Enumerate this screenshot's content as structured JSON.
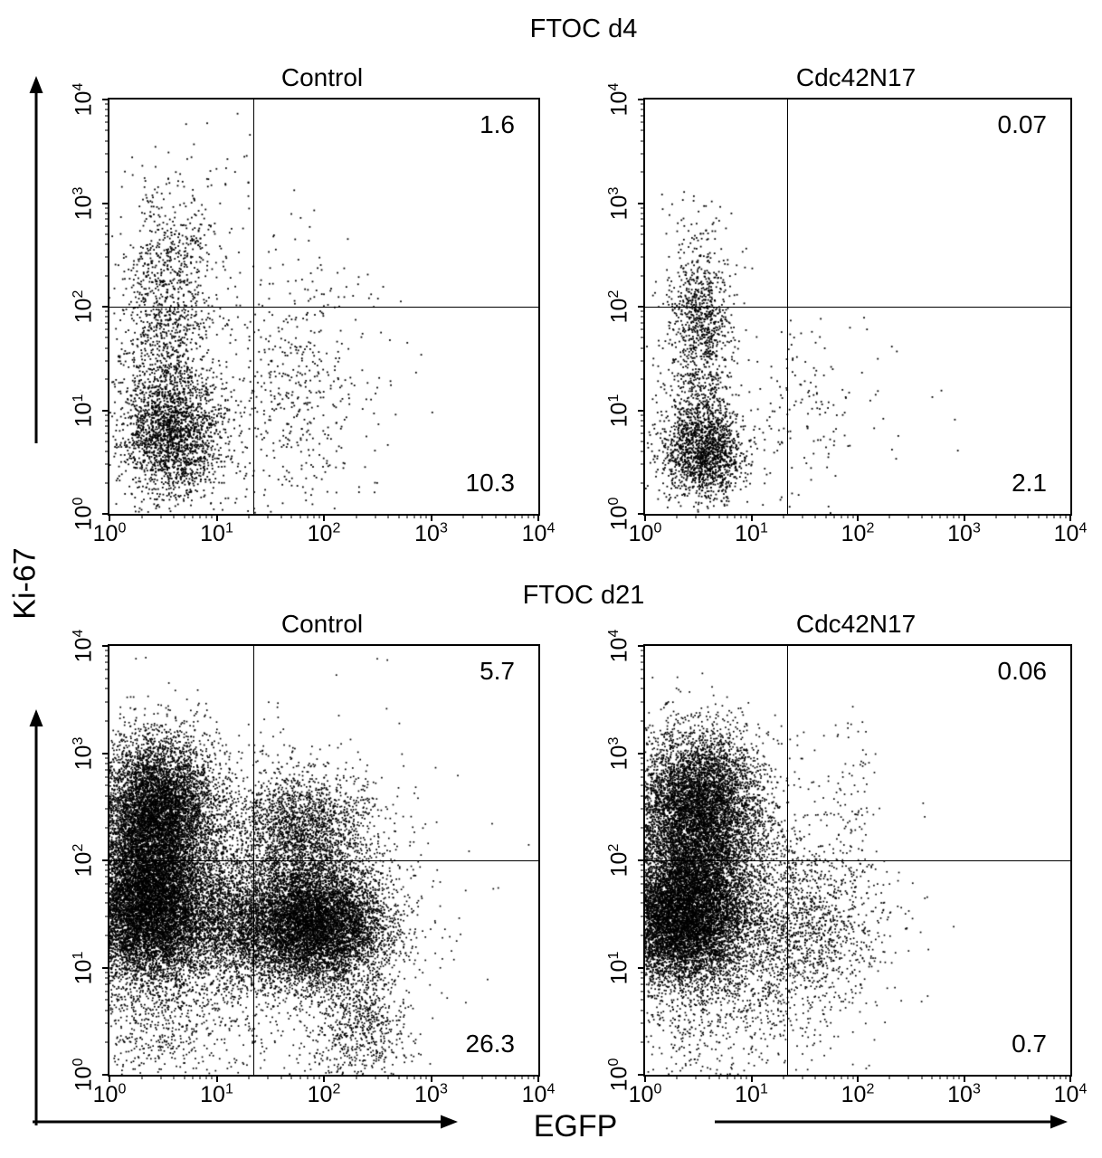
{
  "figure": {
    "ylabel": "Ki-67",
    "xlabel": "EGFP",
    "group_titles": [
      "FTOC d4",
      "FTOC d21"
    ]
  },
  "chart_data": [
    {
      "type": "scatter",
      "group": "FTOC d4",
      "title": "Control",
      "xlabel": "EGFP",
      "ylabel": "Ki-67",
      "x_scale": "log10",
      "y_scale": "log10",
      "xlim": [
        1,
        10000
      ],
      "ylim": [
        1,
        10000
      ],
      "tick_exponents": [
        0,
        1,
        2,
        3,
        4
      ],
      "grid": false,
      "gate": {
        "x": 22,
        "y": 100
      },
      "quadrant_values": {
        "upper_right": "1.6",
        "lower_right": "10.3"
      },
      "seed": 11,
      "point_size": 1.8,
      "populations_format": [
        "cx_log",
        "cy_log",
        "sx_log",
        "sy_log",
        "n"
      ],
      "populations": [
        [
          0.58,
          0.75,
          0.23,
          0.3,
          1900
        ],
        [
          0.52,
          1.55,
          0.22,
          0.45,
          850
        ],
        [
          0.58,
          2.4,
          0.22,
          0.33,
          420
        ],
        [
          0.6,
          3.05,
          0.28,
          0.28,
          60
        ],
        [
          1.75,
          0.95,
          0.38,
          0.5,
          320
        ],
        [
          1.85,
          1.9,
          0.4,
          0.42,
          130
        ],
        [
          1.25,
          1.25,
          0.6,
          0.55,
          160
        ],
        [
          1.15,
          3.5,
          0.15,
          0.35,
          12
        ]
      ]
    },
    {
      "type": "scatter",
      "group": "FTOC d4",
      "title": "Cdc42N17",
      "xlabel": "EGFP",
      "ylabel": "Ki-67",
      "x_scale": "log10",
      "y_scale": "log10",
      "xlim": [
        1,
        10000
      ],
      "ylim": [
        1,
        10000
      ],
      "tick_exponents": [
        0,
        1,
        2,
        3,
        4
      ],
      "grid": false,
      "gate": {
        "x": 22,
        "y": 100
      },
      "quadrant_values": {
        "upper_right": "0.07",
        "lower_right": "2.1"
      },
      "seed": 22,
      "point_size": 1.8,
      "populations_format": [
        "cx_log",
        "cy_log",
        "sx_log",
        "sy_log",
        "n"
      ],
      "populations": [
        [
          0.55,
          0.6,
          0.2,
          0.22,
          1600
        ],
        [
          0.52,
          1.4,
          0.16,
          0.45,
          700
        ],
        [
          0.52,
          2.0,
          0.14,
          0.22,
          380
        ],
        [
          0.55,
          2.65,
          0.2,
          0.25,
          90
        ],
        [
          1.5,
          1.0,
          0.28,
          0.45,
          130
        ],
        [
          2.2,
          0.9,
          0.45,
          0.4,
          18
        ]
      ]
    },
    {
      "type": "scatter",
      "group": "FTOC d21",
      "title": "Control",
      "xlabel": "EGFP",
      "ylabel": "Ki-67",
      "x_scale": "log10",
      "y_scale": "log10",
      "xlim": [
        1,
        10000
      ],
      "ylim": [
        1,
        10000
      ],
      "tick_exponents": [
        0,
        1,
        2,
        3,
        4
      ],
      "grid": false,
      "gate": {
        "x": 22,
        "y": 100
      },
      "quadrant_values": {
        "upper_right": "5.7",
        "lower_right": "26.3"
      },
      "seed": 33,
      "point_size": 1.7,
      "populations_format": [
        "cx_log",
        "cy_log",
        "sx_log",
        "sy_log",
        "n"
      ],
      "populations": [
        [
          0.35,
          1.5,
          0.3,
          0.32,
          7500
        ],
        [
          0.45,
          2.5,
          0.28,
          0.33,
          6000
        ],
        [
          0.4,
          2.0,
          0.3,
          0.25,
          2200
        ],
        [
          1.3,
          1.4,
          0.45,
          0.3,
          3000
        ],
        [
          1.95,
          1.4,
          0.33,
          0.28,
          6500
        ],
        [
          1.8,
          2.25,
          0.32,
          0.28,
          2200
        ],
        [
          2.35,
          0.45,
          0.22,
          0.3,
          700
        ],
        [
          0.45,
          0.45,
          0.35,
          0.3,
          450
        ],
        [
          1.2,
          1.5,
          0.8,
          0.7,
          2000
        ]
      ]
    },
    {
      "type": "scatter",
      "group": "FTOC d21",
      "title": "Cdc42N17",
      "xlabel": "EGFP",
      "ylabel": "Ki-67",
      "x_scale": "log10",
      "y_scale": "log10",
      "xlim": [
        1,
        10000
      ],
      "ylim": [
        1,
        10000
      ],
      "tick_exponents": [
        0,
        1,
        2,
        3,
        4
      ],
      "grid": false,
      "gate": {
        "x": 22,
        "y": 100
      },
      "quadrant_values": {
        "upper_right": "0.06",
        "lower_right": "0.7"
      },
      "seed": 44,
      "point_size": 1.7,
      "populations_format": [
        "cx_log",
        "cy_log",
        "sx_log",
        "sy_log",
        "n"
      ],
      "populations": [
        [
          0.35,
          1.45,
          0.32,
          0.3,
          8000
        ],
        [
          0.5,
          2.55,
          0.3,
          0.33,
          5500
        ],
        [
          0.45,
          2.0,
          0.3,
          0.27,
          2200
        ],
        [
          1.55,
          1.35,
          0.33,
          0.38,
          900
        ],
        [
          1.95,
          2.55,
          0.13,
          0.4,
          70
        ],
        [
          0.95,
          1.5,
          0.55,
          0.6,
          1800
        ],
        [
          0.5,
          0.5,
          0.4,
          0.3,
          350
        ]
      ]
    }
  ]
}
